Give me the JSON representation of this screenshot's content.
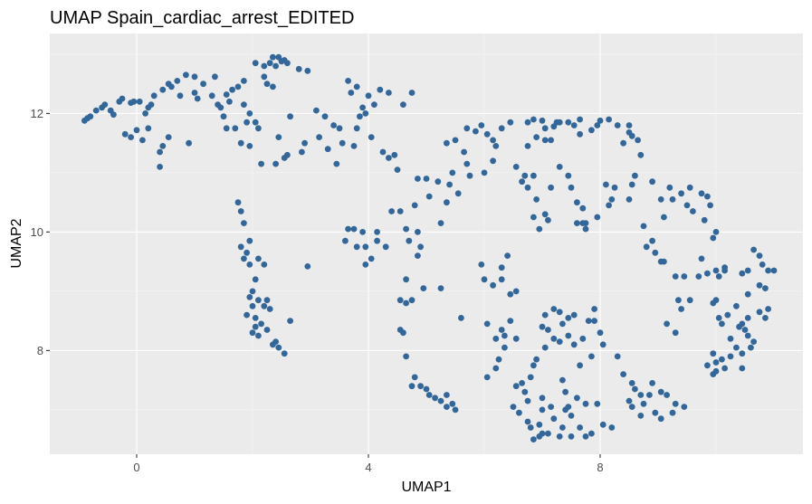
{
  "chart_data": {
    "type": "scatter",
    "title": "UMAP Spain_cardiac_arrest_EDITED",
    "xlabel": "UMAP1",
    "ylabel": "UMAP2",
    "xlim": [
      -1.5,
      11.5
    ],
    "ylim": [
      6.25,
      13.35
    ],
    "xticks": [
      0,
      4,
      8
    ],
    "xtick_labels": [
      "0",
      "4",
      "8"
    ],
    "yticks": [
      8,
      10,
      12
    ],
    "ytick_labels": [
      "8",
      "10",
      "12"
    ],
    "grid": true,
    "legend": "none",
    "point_color": "#336699",
    "panel_background": "#ebebeb",
    "points": [
      [
        -0.9,
        11.88
      ],
      [
        -0.85,
        11.92
      ],
      [
        -0.8,
        11.95
      ],
      [
        -0.7,
        12.05
      ],
      [
        -0.6,
        12.1
      ],
      [
        -0.55,
        12.15
      ],
      [
        -0.45,
        12.05
      ],
      [
        -0.4,
        11.98
      ],
      [
        -0.3,
        12.2
      ],
      [
        -0.25,
        12.25
      ],
      [
        -0.1,
        12.18
      ],
      [
        -0.05,
        12.2
      ],
      [
        0.05,
        12.2
      ],
      [
        0.15,
        12.0
      ],
      [
        0.2,
        12.1
      ],
      [
        0.25,
        12.15
      ],
      [
        0.3,
        12.3
      ],
      [
        0.45,
        12.4
      ],
      [
        0.55,
        12.5
      ],
      [
        0.6,
        12.45
      ],
      [
        0.7,
        12.55
      ],
      [
        0.85,
        12.65
      ],
      [
        1.0,
        12.62
      ],
      [
        1.15,
        12.5
      ],
      [
        1.35,
        12.62
      ],
      [
        1.55,
        12.32
      ],
      [
        1.65,
        12.4
      ],
      [
        1.75,
        12.45
      ],
      [
        0.75,
        12.3
      ],
      [
        1.0,
        12.35
      ],
      [
        1.05,
        12.25
      ],
      [
        1.3,
        12.3
      ],
      [
        1.4,
        12.15
      ],
      [
        1.45,
        12.1
      ],
      [
        1.6,
        12.2
      ],
      [
        1.85,
        12.15
      ],
      [
        1.95,
        12.0
      ],
      [
        2.05,
        11.85
      ],
      [
        2.1,
        11.75
      ],
      [
        1.95,
        11.45
      ],
      [
        2.15,
        11.15
      ],
      [
        2.4,
        11.15
      ],
      [
        2.55,
        11.25
      ],
      [
        2.6,
        11.3
      ],
      [
        2.45,
        11.6
      ],
      [
        0.0,
        11.72
      ],
      [
        -0.1,
        11.6
      ],
      [
        -0.2,
        11.65
      ],
      [
        0.1,
        11.55
      ],
      [
        0.2,
        11.75
      ],
      [
        0.4,
        11.35
      ],
      [
        0.45,
        11.45
      ],
      [
        0.55,
        11.6
      ],
      [
        0.4,
        11.1
      ],
      [
        0.9,
        11.5
      ],
      [
        1.5,
        11.95
      ],
      [
        1.55,
        11.75
      ],
      [
        1.8,
        11.5
      ],
      [
        1.9,
        11.85
      ],
      [
        1.7,
        11.75
      ],
      [
        1.85,
        12.55
      ],
      [
        2.05,
        12.85
      ],
      [
        2.2,
        12.8
      ],
      [
        2.3,
        12.85
      ],
      [
        2.35,
        12.95
      ],
      [
        2.45,
        12.95
      ],
      [
        2.5,
        12.88
      ],
      [
        2.55,
        12.9
      ],
      [
        2.6,
        12.85
      ],
      [
        2.4,
        12.8
      ],
      [
        2.25,
        12.5
      ],
      [
        2.35,
        12.45
      ],
      [
        2.2,
        12.62
      ],
      [
        2.8,
        12.75
      ],
      [
        2.95,
        12.72
      ],
      [
        2.65,
        11.95
      ],
      [
        2.85,
        11.35
      ],
      [
        2.9,
        11.5
      ],
      [
        3.15,
        11.6
      ],
      [
        3.3,
        11.4
      ],
      [
        3.1,
        12.05
      ],
      [
        3.4,
        11.8
      ],
      [
        3.45,
        11.15
      ],
      [
        3.5,
        11.75
      ],
      [
        3.55,
        11.5
      ],
      [
        3.75,
        11.45
      ],
      [
        3.8,
        11.75
      ],
      [
        3.85,
        11.95
      ],
      [
        3.9,
        12.1
      ],
      [
        3.95,
        12.0
      ],
      [
        3.65,
        12.55
      ],
      [
        3.7,
        12.35
      ],
      [
        3.8,
        12.45
      ],
      [
        4.0,
        12.3
      ],
      [
        4.1,
        12.15
      ],
      [
        4.2,
        12.4
      ],
      [
        4.35,
        12.35
      ],
      [
        4.05,
        11.6
      ],
      [
        4.25,
        11.35
      ],
      [
        4.35,
        11.25
      ],
      [
        4.45,
        11.3
      ],
      [
        4.75,
        12.35
      ],
      [
        4.6,
        12.15
      ],
      [
        3.25,
        11.95
      ],
      [
        3.6,
        9.85
      ],
      [
        3.65,
        10.05
      ],
      [
        3.75,
        10.05
      ],
      [
        3.8,
        9.75
      ],
      [
        3.9,
        10.0
      ],
      [
        3.95,
        9.75
      ],
      [
        4.05,
        9.55
      ],
      [
        3.95,
        9.45
      ],
      [
        4.15,
        9.85
      ],
      [
        4.15,
        10.0
      ],
      [
        4.3,
        9.75
      ],
      [
        4.4,
        10.35
      ],
      [
        4.55,
        10.35
      ],
      [
        4.65,
        10.05
      ],
      [
        4.8,
        10.45
      ],
      [
        4.85,
        10.9
      ],
      [
        4.5,
        11.05
      ],
      [
        5.0,
        10.9
      ],
      [
        5.2,
        10.85
      ],
      [
        5.05,
        10.6
      ],
      [
        4.85,
        10.0
      ],
      [
        4.9,
        9.75
      ],
      [
        4.7,
        9.85
      ],
      [
        4.85,
        9.6
      ],
      [
        5.25,
        10.15
      ],
      [
        5.35,
        10.5
      ],
      [
        5.4,
        10.8
      ],
      [
        5.55,
        10.65
      ],
      [
        5.45,
        11.0
      ],
      [
        5.7,
        11.15
      ],
      [
        5.75,
        10.95
      ],
      [
        6.0,
        11.0
      ],
      [
        5.5,
        11.55
      ],
      [
        5.35,
        11.5
      ],
      [
        5.65,
        11.35
      ],
      [
        6.15,
        11.2
      ],
      [
        6.2,
        11.45
      ],
      [
        6.05,
        11.65
      ],
      [
        5.85,
        11.7
      ],
      [
        6.15,
        11.55
      ],
      [
        5.95,
        11.8
      ],
      [
        5.7,
        11.75
      ],
      [
        6.3,
        11.75
      ],
      [
        6.45,
        11.85
      ],
      [
        6.75,
        11.85
      ],
      [
        6.85,
        11.9
      ],
      [
        7.05,
        11.55
      ],
      [
        7.15,
        11.55
      ],
      [
        7.05,
        11.75
      ],
      [
        7.2,
        11.78
      ],
      [
        7.25,
        11.85
      ],
      [
        7.3,
        11.85
      ],
      [
        7.0,
        11.88
      ],
      [
        7.55,
        11.8
      ],
      [
        7.65,
        11.9
      ],
      [
        7.85,
        11.72
      ],
      [
        7.95,
        11.8
      ],
      [
        8.0,
        11.88
      ],
      [
        8.15,
        11.9
      ],
      [
        8.3,
        11.8
      ],
      [
        8.5,
        11.8
      ],
      [
        8.5,
        11.68
      ],
      [
        8.55,
        11.62
      ],
      [
        8.65,
        11.55
      ],
      [
        8.7,
        11.3
      ],
      [
        8.4,
        11.5
      ],
      [
        7.65,
        11.65
      ],
      [
        7.45,
        11.85
      ],
      [
        6.9,
        11.6
      ],
      [
        6.75,
        11.45
      ],
      [
        6.55,
        11.1
      ],
      [
        6.65,
        10.85
      ],
      [
        6.75,
        10.75
      ],
      [
        6.7,
        10.95
      ],
      [
        6.85,
        10.95
      ],
      [
        6.9,
        10.55
      ],
      [
        6.85,
        10.25
      ],
      [
        6.95,
        10.05
      ],
      [
        7.05,
        10.3
      ],
      [
        7.1,
        10.2
      ],
      [
        7.3,
        11.1
      ],
      [
        7.15,
        10.75
      ],
      [
        7.45,
        10.95
      ],
      [
        7.5,
        10.75
      ],
      [
        7.6,
        10.5
      ],
      [
        7.7,
        10.4
      ],
      [
        7.6,
        10.15
      ],
      [
        7.7,
        10.15
      ],
      [
        7.75,
        10.15
      ],
      [
        7.75,
        10.05
      ],
      [
        7.95,
        10.25
      ],
      [
        8.15,
        10.45
      ],
      [
        8.2,
        10.55
      ],
      [
        8.1,
        10.8
      ],
      [
        8.25,
        10.75
      ],
      [
        8.5,
        10.55
      ],
      [
        8.55,
        10.8
      ],
      [
        8.6,
        10.95
      ],
      [
        8.9,
        10.85
      ],
      [
        9.05,
        10.55
      ],
      [
        9.25,
        10.55
      ],
      [
        9.2,
        10.75
      ],
      [
        9.55,
        10.75
      ],
      [
        9.4,
        10.65
      ],
      [
        9.5,
        10.45
      ],
      [
        9.6,
        10.35
      ],
      [
        9.75,
        10.65
      ],
      [
        9.85,
        10.6
      ],
      [
        9.9,
        10.45
      ],
      [
        9.8,
        10.2
      ],
      [
        10.0,
        10.0
      ],
      [
        9.95,
        9.9
      ],
      [
        9.1,
        10.25
      ],
      [
        8.75,
        10.1
      ],
      [
        8.8,
        9.75
      ],
      [
        8.9,
        9.85
      ],
      [
        8.95,
        9.65
      ],
      [
        9.05,
        9.5
      ],
      [
        9.1,
        9.5
      ],
      [
        9.3,
        9.25
      ],
      [
        9.35,
        8.85
      ],
      [
        9.4,
        8.7
      ],
      [
        9.55,
        8.85
      ],
      [
        9.45,
        9.25
      ],
      [
        9.7,
        9.25
      ],
      [
        9.75,
        9.55
      ],
      [
        9.85,
        9.3
      ],
      [
        10.0,
        9.35
      ],
      [
        10.05,
        9.25
      ],
      [
        10.15,
        9.35
      ],
      [
        10.15,
        9.4
      ],
      [
        10.45,
        9.3
      ],
      [
        10.55,
        9.35
      ],
      [
        10.65,
        9.7
      ],
      [
        10.75,
        9.6
      ],
      [
        10.8,
        9.45
      ],
      [
        10.9,
        9.35
      ],
      [
        11.0,
        9.35
      ],
      [
        10.85,
        9.05
      ],
      [
        10.75,
        9.1
      ],
      [
        10.55,
        8.95
      ],
      [
        10.35,
        8.75
      ],
      [
        10.2,
        8.6
      ],
      [
        10.05,
        8.55
      ],
      [
        10.0,
        8.85
      ],
      [
        9.95,
        8.8
      ],
      [
        10.1,
        8.45
      ],
      [
        10.25,
        8.2
      ],
      [
        10.45,
        8.45
      ],
      [
        10.5,
        8.35
      ],
      [
        10.55,
        8.25
      ],
      [
        10.65,
        8.15
      ],
      [
        10.6,
        8.05
      ],
      [
        10.45,
        7.95
      ],
      [
        10.25,
        7.9
      ],
      [
        10.1,
        7.85
      ],
      [
        10.0,
        7.8
      ],
      [
        9.95,
        7.95
      ],
      [
        9.85,
        7.75
      ],
      [
        9.95,
        7.6
      ],
      [
        10.0,
        7.65
      ],
      [
        10.15,
        7.7
      ],
      [
        10.45,
        7.7
      ],
      [
        10.35,
        8.05
      ],
      [
        10.75,
        8.65
      ],
      [
        10.9,
        8.7
      ],
      [
        10.85,
        8.55
      ],
      [
        10.55,
        8.55
      ],
      [
        10.4,
        8.4
      ],
      [
        9.3,
        8.3
      ],
      [
        9.15,
        8.45
      ],
      [
        5.95,
        9.45
      ],
      [
        6.0,
        9.2
      ],
      [
        6.15,
        9.1
      ],
      [
        6.3,
        9.2
      ],
      [
        6.4,
        9.6
      ],
      [
        6.3,
        9.4
      ],
      [
        6.45,
        8.95
      ],
      [
        6.55,
        9.0
      ],
      [
        6.45,
        8.5
      ],
      [
        6.3,
        8.35
      ],
      [
        6.05,
        8.45
      ],
      [
        6.2,
        8.2
      ],
      [
        6.35,
        8.25
      ],
      [
        6.55,
        8.2
      ],
      [
        6.35,
        8.05
      ],
      [
        6.05,
        7.55
      ],
      [
        6.2,
        7.7
      ],
      [
        6.25,
        7.85
      ],
      [
        6.55,
        7.4
      ],
      [
        6.65,
        7.45
      ],
      [
        6.5,
        7.05
      ],
      [
        6.6,
        6.95
      ],
      [
        6.75,
        6.8
      ],
      [
        6.8,
        6.7
      ],
      [
        6.95,
        6.75
      ],
      [
        7.0,
        6.6
      ],
      [
        6.85,
        6.5
      ],
      [
        6.95,
        6.55
      ],
      [
        7.1,
        6.6
      ],
      [
        7.3,
        6.55
      ],
      [
        7.35,
        6.7
      ],
      [
        7.2,
        6.85
      ],
      [
        7.4,
        7.0
      ],
      [
        7.45,
        7.05
      ],
      [
        7.5,
        6.9
      ],
      [
        7.5,
        6.55
      ],
      [
        7.75,
        6.55
      ],
      [
        7.65,
        6.7
      ],
      [
        7.85,
        6.6
      ],
      [
        8.05,
        6.75
      ],
      [
        8.2,
        6.7
      ],
      [
        7.95,
        7.1
      ],
      [
        7.75,
        7.1
      ],
      [
        7.6,
        7.2
      ],
      [
        7.4,
        7.3
      ],
      [
        7.35,
        7.5
      ],
      [
        7.15,
        7.05
      ],
      [
        7.0,
        7.0
      ],
      [
        7.0,
        7.2
      ],
      [
        6.75,
        7.15
      ],
      [
        6.7,
        7.3
      ],
      [
        6.8,
        7.55
      ],
      [
        6.85,
        7.75
      ],
      [
        6.9,
        7.85
      ],
      [
        7.05,
        8.05
      ],
      [
        7.2,
        8.2
      ],
      [
        7.1,
        8.35
      ],
      [
        7.0,
        8.4
      ],
      [
        7.3,
        8.15
      ],
      [
        7.45,
        8.25
      ],
      [
        7.55,
        8.1
      ],
      [
        7.7,
        8.2
      ],
      [
        7.8,
        8.5
      ],
      [
        7.9,
        8.5
      ],
      [
        8.0,
        8.3
      ],
      [
        8.05,
        8.1
      ],
      [
        7.85,
        7.9
      ],
      [
        7.65,
        7.75
      ],
      [
        7.55,
        8.6
      ],
      [
        7.45,
        8.55
      ],
      [
        7.35,
        8.45
      ],
      [
        7.3,
        8.65
      ],
      [
        7.2,
        8.7
      ],
      [
        7.05,
        8.6
      ],
      [
        7.9,
        8.7
      ],
      [
        8.3,
        7.9
      ],
      [
        8.4,
        7.6
      ],
      [
        8.55,
        7.45
      ],
      [
        8.6,
        7.35
      ],
      [
        8.7,
        7.25
      ],
      [
        8.75,
        7.1
      ],
      [
        8.85,
        7.25
      ],
      [
        8.9,
        7.45
      ],
      [
        9.05,
        7.3
      ],
      [
        9.15,
        7.25
      ],
      [
        9.3,
        7.1
      ],
      [
        9.45,
        7.05
      ],
      [
        8.95,
        6.95
      ],
      [
        9.05,
        6.85
      ],
      [
        9.25,
        6.95
      ],
      [
        8.7,
        6.9
      ],
      [
        8.55,
        7.05
      ],
      [
        8.5,
        7.15
      ],
      [
        4.55,
        8.85
      ],
      [
        4.65,
        8.8
      ],
      [
        4.75,
        8.85
      ],
      [
        4.55,
        8.35
      ],
      [
        4.6,
        8.3
      ],
      [
        4.65,
        7.9
      ],
      [
        4.75,
        7.4
      ],
      [
        4.8,
        7.55
      ],
      [
        4.9,
        7.4
      ],
      [
        5.0,
        7.35
      ],
      [
        5.05,
        7.25
      ],
      [
        5.15,
        7.2
      ],
      [
        5.25,
        7.15
      ],
      [
        5.35,
        7.25
      ],
      [
        5.35,
        7.05
      ],
      [
        5.5,
        7.0
      ],
      [
        5.45,
        7.1
      ],
      [
        5.6,
        8.55
      ],
      [
        5.25,
        9.05
      ],
      [
        4.95,
        9.05
      ],
      [
        4.65,
        9.2
      ],
      [
        1.75,
        10.5
      ],
      [
        1.8,
        10.35
      ],
      [
        1.85,
        10.15
      ],
      [
        1.8,
        9.75
      ],
      [
        1.9,
        9.65
      ],
      [
        1.85,
        9.55
      ],
      [
        1.95,
        9.45
      ],
      [
        2.1,
        9.55
      ],
      [
        2.2,
        9.45
      ],
      [
        2.05,
        9.2
      ],
      [
        2.0,
        9.0
      ],
      [
        1.95,
        8.9
      ],
      [
        2.1,
        8.85
      ],
      [
        2.2,
        8.75
      ],
      [
        2.25,
        8.85
      ],
      [
        2.3,
        8.7
      ],
      [
        2.15,
        8.45
      ],
      [
        2.05,
        8.4
      ],
      [
        2.0,
        8.3
      ],
      [
        2.25,
        8.35
      ],
      [
        2.1,
        8.25
      ],
      [
        2.4,
        8.15
      ],
      [
        2.45,
        8.05
      ],
      [
        2.55,
        7.95
      ],
      [
        2.35,
        8.1
      ],
      [
        2.0,
        8.75
      ],
      [
        1.9,
        8.6
      ],
      [
        2.65,
        8.5
      ],
      [
        2.95,
        9.42
      ],
      [
        1.95,
        9.85
      ],
      [
        2.05,
        8.55
      ]
    ]
  }
}
